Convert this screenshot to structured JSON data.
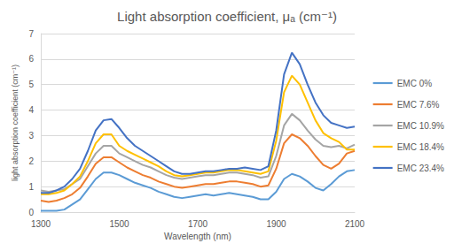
{
  "chart_data": {
    "type": "line",
    "title": "Light absorption coefficient, μₐ (cm⁻¹)",
    "x_label": "Wavelength (nm)",
    "y_label": "light absorption coefficient (cm⁻¹)",
    "x": [
      1300,
      1320,
      1340,
      1360,
      1380,
      1400,
      1420,
      1440,
      1460,
      1480,
      1500,
      1520,
      1540,
      1560,
      1580,
      1600,
      1620,
      1640,
      1660,
      1680,
      1700,
      1720,
      1740,
      1760,
      1780,
      1800,
      1820,
      1840,
      1860,
      1880,
      1900,
      1920,
      1940,
      1960,
      1980,
      2000,
      2020,
      2040,
      2060,
      2080,
      2100
    ],
    "series": [
      {
        "name": "EMC 0%",
        "color": "#5b9bd5",
        "values": [
          0.05,
          0.05,
          0.05,
          0.1,
          0.3,
          0.5,
          0.9,
          1.3,
          1.55,
          1.55,
          1.45,
          1.3,
          1.15,
          1.05,
          0.95,
          0.8,
          0.7,
          0.6,
          0.55,
          0.6,
          0.65,
          0.7,
          0.65,
          0.7,
          0.75,
          0.7,
          0.65,
          0.6,
          0.5,
          0.5,
          0.8,
          1.3,
          1.5,
          1.4,
          1.2,
          0.95,
          0.85,
          1.1,
          1.4,
          1.6,
          1.65
        ]
      },
      {
        "name": "EMC 7.6%",
        "color": "#ed7d31",
        "values": [
          0.45,
          0.4,
          0.45,
          0.55,
          0.7,
          0.95,
          1.4,
          1.9,
          2.15,
          2.15,
          1.95,
          1.75,
          1.6,
          1.45,
          1.35,
          1.2,
          1.1,
          1.0,
          0.95,
          1.0,
          1.05,
          1.1,
          1.1,
          1.15,
          1.2,
          1.2,
          1.15,
          1.1,
          1.0,
          1.05,
          1.7,
          2.7,
          3.05,
          2.9,
          2.6,
          2.2,
          1.85,
          1.7,
          1.9,
          2.3,
          2.4
        ]
      },
      {
        "name": "EMC 10.9%",
        "color": "#a5a5a5",
        "values": [
          0.85,
          0.8,
          0.85,
          0.9,
          1.1,
          1.3,
          1.8,
          2.3,
          2.6,
          2.6,
          2.3,
          2.15,
          2.0,
          1.85,
          1.75,
          1.6,
          1.45,
          1.35,
          1.3,
          1.35,
          1.4,
          1.45,
          1.45,
          1.5,
          1.55,
          1.55,
          1.5,
          1.45,
          1.35,
          1.4,
          2.2,
          3.4,
          3.85,
          3.6,
          3.2,
          2.85,
          2.6,
          2.55,
          2.6,
          2.5,
          2.65
        ]
      },
      {
        "name": "EMC 18.4%",
        "color": "#ffc000",
        "values": [
          0.7,
          0.7,
          0.75,
          0.85,
          1.1,
          1.4,
          2.0,
          2.7,
          3.05,
          3.05,
          2.6,
          2.4,
          2.25,
          2.1,
          1.95,
          1.8,
          1.6,
          1.45,
          1.4,
          1.45,
          1.5,
          1.55,
          1.55,
          1.6,
          1.65,
          1.65,
          1.6,
          1.55,
          1.5,
          1.6,
          2.8,
          4.7,
          5.35,
          5.0,
          4.3,
          3.6,
          3.1,
          2.9,
          2.75,
          2.45,
          2.45
        ]
      },
      {
        "name": "EMC 23.4%",
        "color": "#4472c4",
        "values": [
          0.75,
          0.75,
          0.85,
          1.0,
          1.3,
          1.7,
          2.4,
          3.2,
          3.6,
          3.65,
          3.3,
          2.9,
          2.6,
          2.4,
          2.2,
          2.0,
          1.8,
          1.6,
          1.5,
          1.5,
          1.55,
          1.6,
          1.6,
          1.65,
          1.7,
          1.7,
          1.75,
          1.7,
          1.65,
          1.8,
          3.2,
          5.4,
          6.25,
          5.8,
          5.0,
          4.3,
          3.8,
          3.5,
          3.4,
          3.3,
          3.35
        ]
      }
    ],
    "xlim": [
      1300,
      2100
    ],
    "xticks": [
      1300,
      1500,
      1700,
      1900,
      2100
    ],
    "ylim": [
      0,
      7
    ],
    "yticks": [
      0,
      1,
      2,
      3,
      4,
      5,
      6,
      7
    ],
    "grid": true,
    "legend": "right"
  }
}
